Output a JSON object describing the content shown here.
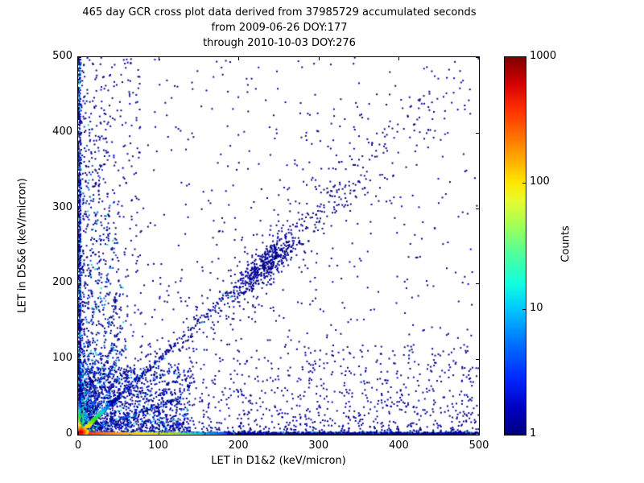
{
  "header": {
    "title_lines": [
      "465 day GCR cross plot data derived from 37985729 accumulated seconds",
      "from 2009-06-26 DOY:177",
      "through 2010-10-03 DOY:276"
    ]
  },
  "axes": {
    "xlabel": "LET in D1&2 (keV/micron)",
    "ylabel": "LET in D5&6 (keV/micron)",
    "xlim": [
      0,
      500
    ],
    "ylim": [
      0,
      500
    ],
    "x_tick_values": [
      0,
      100,
      200,
      300,
      400,
      500
    ],
    "x_tick_labels": [
      "0",
      "100",
      "200",
      "300",
      "400",
      "500"
    ],
    "y_tick_values": [
      0,
      100,
      200,
      300,
      400,
      500
    ],
    "y_tick_labels": [
      "0",
      "100",
      "200",
      "300",
      "400",
      "500"
    ]
  },
  "colorbar": {
    "label": "Counts",
    "scale": "log",
    "ticks": [
      {
        "label": "1000",
        "frac": 0
      },
      {
        "label": "100",
        "frac": 0.3333
      },
      {
        "label": "10",
        "frac": 0.6667
      },
      {
        "label": "1",
        "frac": 1
      }
    ],
    "gradient": [
      [
        0,
        "#7f0000"
      ],
      [
        0.07,
        "#d40000"
      ],
      [
        0.14,
        "#ff3000"
      ],
      [
        0.22,
        "#ff7a00"
      ],
      [
        0.28,
        "#ffb400"
      ],
      [
        0.333,
        "#ffe800"
      ],
      [
        0.38,
        "#e8fa30"
      ],
      [
        0.44,
        "#a8ff50"
      ],
      [
        0.52,
        "#50ff9a"
      ],
      [
        0.6,
        "#10ffe0"
      ],
      [
        0.667,
        "#00c8ff"
      ],
      [
        0.75,
        "#0078ff"
      ],
      [
        0.85,
        "#0028ff"
      ],
      [
        0.93,
        "#0000c0"
      ],
      [
        1,
        "#000080"
      ]
    ]
  },
  "chart_data": {
    "type": "heatmap",
    "title": "465 day GCR cross plot data derived from 37985729 accumulated seconds\nfrom 2009-06-26 DOY:177\nthrough 2010-10-03 DOY:276",
    "xlabel": "LET in D1&2 (keV/micron)",
    "ylabel": "LET in D5&6 (keV/micron)",
    "xlim": [
      0,
      500
    ],
    "ylim": [
      0,
      500
    ],
    "counts_range": [
      1,
      1000
    ],
    "colormap": "jet",
    "legend_position": "right-colorbar",
    "grid": false,
    "description": "2D histogram cross plot; hot (red/yellow) core at origin, hot bands along both axes near zero, bright short diagonal track from origin, fan of faint particle tracks of increasing slope, sparse navy background denser toward lower-left, and a diagonal heavy-ion cluster near (233,224).",
    "palette": {
      "navy": "#000082",
      "blue": "#0000d0",
      "blue2": "#0048ff",
      "ltblue": "#0096ff",
      "cyan": "#00d8d8",
      "green": "#2ee600",
      "ygreen": "#b4f000",
      "yellow": "#ffe400",
      "orange": "#ff8c00",
      "red": "#ff2200",
      "darkred": "#8f0000"
    },
    "hotbase_ramp": [
      [
        0,
        "green"
      ],
      [
        0.5,
        "cyan"
      ],
      [
        1,
        "blue2"
      ]
    ],
    "components": [
      {
        "kind": "cloud",
        "n": 1600,
        "xmin": 0,
        "xmax": 140,
        "xpow": 1.8,
        "ymin": 0,
        "ymax": 90,
        "ypow": 1.8,
        "mix": [
          [
            "navy",
            0.5
          ],
          [
            "blue",
            0.3
          ],
          [
            "blue2",
            0.12
          ],
          [
            "cyan",
            0.08
          ]
        ]
      },
      {
        "kind": "cloud",
        "n": 1100,
        "xmin": 0,
        "xmax": 500,
        "xpow": 0.9,
        "ymin": 0,
        "ymax": 120,
        "ypow": 2.2,
        "mix": [
          [
            "navy",
            0.78
          ],
          [
            "blue",
            0.22
          ]
        ]
      },
      {
        "kind": "cloud",
        "n": 650,
        "xmin": 0,
        "xmax": 80,
        "xpow": 2.2,
        "ymin": 0,
        "ymax": 500,
        "ypow": 1.1,
        "mix": [
          [
            "navy",
            0.78
          ],
          [
            "blue",
            0.22
          ]
        ]
      },
      {
        "kind": "cloud",
        "n": 540,
        "xmin": 0,
        "xmax": 500,
        "xpow": 1.0,
        "ymin": 0,
        "ymax": 500,
        "ypow": 1.0,
        "mix": [
          [
            "navy",
            0.85
          ],
          [
            "blue",
            0.15
          ]
        ]
      },
      {
        "kind": "diag_gauss",
        "n": 240,
        "cx": 250,
        "cy": 250,
        "s_along": 150,
        "s_cross": 45,
        "mix": [
          [
            "navy",
            1
          ]
        ]
      },
      {
        "kind": "diag_gauss",
        "n": 420,
        "cx": 233,
        "cy": 224,
        "s_along": 26,
        "s_cross": 8.5,
        "mix": [
          [
            "navy",
            0.75
          ],
          [
            "blue",
            0.25
          ]
        ]
      },
      {
        "kind": "diag_line",
        "n": 170,
        "t0": 120,
        "t1": 350,
        "tpow": 1.0,
        "yscale": 0.97,
        "sigma": 10,
        "mix": [
          [
            "navy",
            1
          ]
        ]
      },
      {
        "kind": "diag_line",
        "n": 90,
        "t0": 280,
        "t1": 480,
        "tpow": 1.0,
        "yscale": 1.0,
        "sigma": 18,
        "mix": [
          [
            "navy",
            1
          ]
        ]
      },
      {
        "kind": "streak",
        "n": 130,
        "slope": 1.5,
        "len": 75,
        "tpow": 1.9,
        "sigma0": 1.1,
        "sigma1": 0.008,
        "hotbase": true,
        "mix": [
          [
            "navy",
            0.62
          ],
          [
            "blue2",
            0.28
          ],
          [
            "cyan",
            0.1
          ]
        ]
      },
      {
        "kind": "streak",
        "n": 150,
        "slope": 2.0,
        "len": 115,
        "tpow": 1.9,
        "sigma0": 1.1,
        "sigma1": 0.008,
        "hotbase": true,
        "mix": [
          [
            "navy",
            0.62
          ],
          [
            "blue2",
            0.28
          ],
          [
            "cyan",
            0.1
          ]
        ]
      },
      {
        "kind": "streak",
        "n": 150,
        "slope": 2.7,
        "len": 155,
        "tpow": 1.9,
        "sigma0": 1.1,
        "sigma1": 0.008,
        "hotbase": true,
        "mix": [
          [
            "navy",
            0.62
          ],
          [
            "blue2",
            0.28
          ],
          [
            "cyan",
            0.1
          ]
        ]
      },
      {
        "kind": "streak",
        "n": 160,
        "slope": 3.8,
        "len": 205,
        "tpow": 1.9,
        "sigma0": 1.1,
        "sigma1": 0.008,
        "hotbase": true,
        "mix": [
          [
            "navy",
            0.62
          ],
          [
            "blue2",
            0.28
          ],
          [
            "cyan",
            0.1
          ]
        ]
      },
      {
        "kind": "streak",
        "n": 150,
        "slope": 5.5,
        "len": 265,
        "tpow": 1.9,
        "sigma0": 1.1,
        "sigma1": 0.008,
        "hotbase": true,
        "mix": [
          [
            "navy",
            0.62
          ],
          [
            "blue2",
            0.28
          ],
          [
            "cyan",
            0.1
          ]
        ]
      },
      {
        "kind": "streak",
        "n": 150,
        "slope": 8,
        "len": 325,
        "tpow": 1.9,
        "sigma0": 1.1,
        "sigma1": 0.008,
        "hotbase": true,
        "mix": [
          [
            "navy",
            0.65
          ],
          [
            "blue2",
            0.27
          ],
          [
            "cyan",
            0.08
          ]
        ]
      },
      {
        "kind": "streak",
        "n": 140,
        "slope": 14,
        "len": 385,
        "tpow": 1.9,
        "sigma0": 1.1,
        "sigma1": 0.008,
        "hotbase": true,
        "mix": [
          [
            "navy",
            0.68
          ],
          [
            "blue2",
            0.25
          ],
          [
            "cyan",
            0.07
          ]
        ]
      },
      {
        "kind": "streak",
        "n": 150,
        "slope": 28,
        "len": 435,
        "tpow": 1.9,
        "sigma0": 1.1,
        "sigma1": 0.008,
        "hotbase": true,
        "mix": [
          [
            "navy",
            0.7
          ],
          [
            "blue2",
            0.23
          ],
          [
            "cyan",
            0.07
          ]
        ]
      },
      {
        "kind": "streak",
        "n": 120,
        "slope": 0.38,
        "len": 130,
        "tpow": 1.6,
        "sigma0": 1.2,
        "sigma1": 0.01,
        "hotbase": true,
        "mix": [
          [
            "navy",
            0.6
          ],
          [
            "blue2",
            0.3
          ],
          [
            "cyan",
            0.1
          ]
        ]
      },
      {
        "kind": "cloud",
        "n": 950,
        "xmin": 60,
        "xmax": 500,
        "xpow": 0.8,
        "ymin": 0,
        "ymax": 3.2,
        "ypow": 1,
        "mix": [
          [
            "navy",
            0.55
          ],
          [
            "blue",
            0.28
          ],
          [
            "cyan",
            0.17
          ]
        ]
      },
      {
        "kind": "cloud",
        "n": 520,
        "xmin": 0,
        "xmax": 500,
        "xpow": 1,
        "ymin": 0,
        "ymax": 1.4,
        "ypow": 1,
        "mix": [
          [
            "navy",
            0.75
          ],
          [
            "blue",
            0.25
          ]
        ]
      },
      {
        "kind": "cloud",
        "n": 720,
        "xmin": 0,
        "xmax": 3.2,
        "xpow": 1,
        "ymin": 15,
        "ymax": 500,
        "ypow": 1.45,
        "mix": [
          [
            "navy",
            0.55
          ],
          [
            "blue",
            0.28
          ],
          [
            "cyan",
            0.17
          ]
        ]
      },
      {
        "kind": "cloud",
        "n": 820,
        "xmin": 0,
        "xmax": 185,
        "xpow": 1.85,
        "ymin": 0,
        "ymax": 2.6,
        "ypow": 1,
        "ramp_axis": "x",
        "ramp": [
          [
            0,
            "darkred"
          ],
          [
            0.05,
            "red"
          ],
          [
            0.2,
            "orange"
          ],
          [
            0.42,
            "yellow"
          ],
          [
            0.62,
            "ygreen"
          ],
          [
            0.8,
            "cyan"
          ],
          [
            1,
            "blue2"
          ]
        ]
      },
      {
        "kind": "cloud",
        "n": 300,
        "xmin": 0,
        "xmax": 2.6,
        "xpow": 1,
        "ymin": 0,
        "ymax": 42,
        "ypow": 1.6,
        "ramp_axis": "y",
        "ramp": [
          [
            0,
            "red"
          ],
          [
            0.12,
            "orange"
          ],
          [
            0.3,
            "yellow"
          ],
          [
            0.52,
            "green"
          ],
          [
            0.75,
            "cyan"
          ],
          [
            1,
            "blue2"
          ]
        ]
      },
      {
        "kind": "streak",
        "n": 430,
        "slope": 1.0,
        "len": 50,
        "tpow": 1.35,
        "sigma0": 1.3,
        "sigma1": 0.004,
        "ramp": [
          [
            0,
            "red"
          ],
          [
            0.1,
            "orange"
          ],
          [
            0.22,
            "yellow"
          ],
          [
            0.4,
            "green"
          ],
          [
            0.6,
            "cyan"
          ],
          [
            0.8,
            "blue2"
          ],
          [
            1,
            "blue"
          ]
        ]
      },
      {
        "kind": "streak",
        "n": 240,
        "slope": 1.0,
        "len": 190,
        "t0": 40,
        "tpow": 2.6,
        "sigma0": 2.2,
        "sigma1": 0.004,
        "mix": [
          [
            "navy",
            0.6
          ],
          [
            "blue",
            0.3
          ],
          [
            "cyan",
            0.1
          ]
        ]
      },
      {
        "kind": "blob",
        "n": 320,
        "cx": 3.2,
        "cy": 3.2,
        "sx": 3.2,
        "sy": 3.2,
        "rref": 9,
        "ramp": [
          [
            0,
            "darkred"
          ],
          [
            0.35,
            "red"
          ],
          [
            0.65,
            "orange"
          ],
          [
            1,
            "yellow"
          ]
        ]
      }
    ]
  }
}
